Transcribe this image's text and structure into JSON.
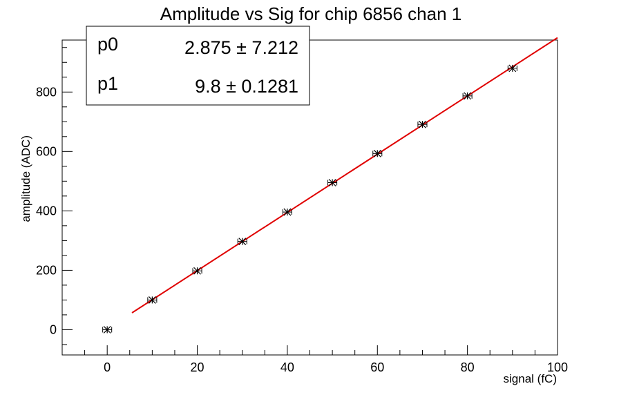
{
  "chart_data": {
    "type": "scatter",
    "title": "Amplitude vs Sig for chip 6856 chan 1",
    "xlabel": "signal (fC)",
    "ylabel": "amplitude (ADC)",
    "xlim": [
      -10,
      100
    ],
    "ylim": [
      -85,
      975
    ],
    "x_ticks": [
      0,
      20,
      40,
      60,
      80,
      100
    ],
    "y_ticks": [
      0,
      200,
      400,
      600,
      800
    ],
    "grid": false,
    "points": {
      "x": [
        0,
        10,
        20,
        30,
        40,
        50,
        60,
        70,
        80,
        90
      ],
      "y": [
        0,
        100,
        198,
        297,
        396,
        495,
        593,
        691,
        787,
        880
      ],
      "x_error": 1.0,
      "marker_color": "#000000"
    },
    "fit": {
      "p0": 2.875,
      "p1": 9.8,
      "x_range": [
        5.5,
        100
      ],
      "color": "#e00000"
    },
    "stats_box": {
      "placement": "top-left",
      "rows": [
        {
          "name": "p0",
          "value": "2.875 ± 7.212"
        },
        {
          "name": "p1",
          "value": "9.8 ± 0.1281"
        }
      ]
    }
  }
}
